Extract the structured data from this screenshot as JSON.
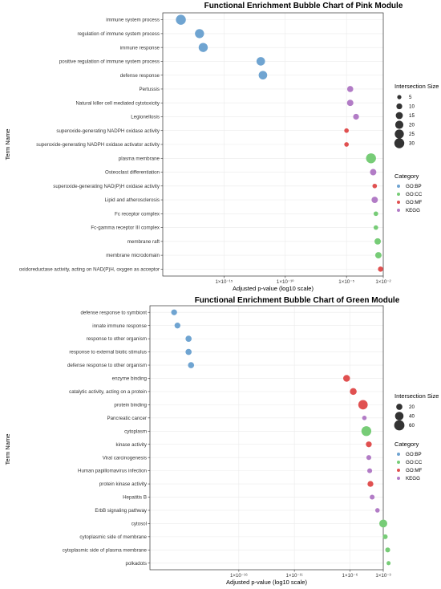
{
  "colors": {
    "GO:BP": "#6fa4d1",
    "GO:CC": "#77cc77",
    "GO:MF": "#e05050",
    "KEGG": "#b27cc6"
  },
  "chart_data": [
    {
      "type": "scatter",
      "title": "Functional Enrichment Bubble Chart of Pink Module",
      "xlabel": "Adjusted p-value (log10 scale)",
      "ylabel": "Term Name",
      "x_scale": "log10",
      "xlim": [
        1e-20,
        0.01
      ],
      "xticks": [
        1e-15,
        1e-10,
        1e-05,
        0.01
      ],
      "xtick_labels": [
        "1×10⁻¹⁵",
        "1×10⁻¹⁰",
        "1×10⁻⁵",
        "1×10⁻²"
      ],
      "size_legend_title": "Intersection Size",
      "size_legend": [
        5,
        10,
        15,
        20,
        25,
        30
      ],
      "category_legend_title": "Category",
      "categories": [
        "GO:BP",
        "GO:CC",
        "GO:MF",
        "KEGG"
      ],
      "grid": true,
      "points": [
        {
          "term": "immune system process",
          "p": 3e-19,
          "size": 30,
          "category": "GO:BP"
        },
        {
          "term": "regulation of immune system process",
          "p": 1e-17,
          "size": 25,
          "category": "GO:BP"
        },
        {
          "term": "immune response",
          "p": 2e-17,
          "size": 25,
          "category": "GO:BP"
        },
        {
          "term": "positive regulation of immune system process",
          "p": 1e-12,
          "size": 22,
          "category": "GO:BP"
        },
        {
          "term": "defense response",
          "p": 1.5e-12,
          "size": 22,
          "category": "GO:BP"
        },
        {
          "term": "Pertussis",
          "p": 2e-05,
          "size": 11,
          "category": "KEGG"
        },
        {
          "term": "Natural killer cell mediated cytotoxicity",
          "p": 2e-05,
          "size": 12,
          "category": "KEGG"
        },
        {
          "term": "Legionellosis",
          "p": 6e-05,
          "size": 10,
          "category": "KEGG"
        },
        {
          "term": "superoxide-generating NADPH oxidase activity",
          "p": 1e-05,
          "size": 6,
          "category": "GO:MF"
        },
        {
          "term": "superoxide-generating NADPH oxidase activator activity",
          "p": 1e-05,
          "size": 6,
          "category": "GO:MF"
        },
        {
          "term": "plasma membrane",
          "p": 0.001,
          "size": 30,
          "category": "GO:CC"
        },
        {
          "term": "Osteoclast differentiation",
          "p": 0.0015,
          "size": 12,
          "category": "KEGG"
        },
        {
          "term": "superoxide-generating NAD(P)H oxidase activity",
          "p": 0.002,
          "size": 6,
          "category": "GO:MF"
        },
        {
          "term": "Lipid and atherosclerosis",
          "p": 0.002,
          "size": 12,
          "category": "KEGG"
        },
        {
          "term": "Fc receptor complex",
          "p": 0.0025,
          "size": 6,
          "category": "GO:CC"
        },
        {
          "term": "Fc-gamma receptor III complex",
          "p": 0.0025,
          "size": 6,
          "category": "GO:CC"
        },
        {
          "term": "membrane raft",
          "p": 0.0035,
          "size": 12,
          "category": "GO:CC"
        },
        {
          "term": "membrane microdomain",
          "p": 0.004,
          "size": 12,
          "category": "GO:CC"
        },
        {
          "term": "oxidoreductase activity, acting on NAD(P)H, oxygen as acceptor",
          "p": 0.006,
          "size": 8,
          "category": "GO:MF"
        }
      ]
    },
    {
      "type": "scatter",
      "title": "Functional Enrichment Bubble Chart of Green Module",
      "xlabel": "Adjusted p-value (log10 scale)",
      "ylabel": "Term Name",
      "x_scale": "log10",
      "xlim": [
        1e-24,
        0.001
      ],
      "xticks": [
        1e-16,
        1e-11,
        1e-06,
        0.001
      ],
      "xtick_labels": [
        "1×10⁻¹⁶",
        "1×10⁻¹¹",
        "1×10⁻⁶",
        "1×10⁻³"
      ],
      "size_legend_title": "Intersection Size",
      "size_legend": [
        20,
        40,
        60
      ],
      "category_legend_title": "Category",
      "categories": [
        "GO:BP",
        "GO:CC",
        "GO:MF",
        "KEGG"
      ],
      "grid": true,
      "points": [
        {
          "term": "defense response to symbiont",
          "p": 1.5e-22,
          "size": 18,
          "category": "GO:BP"
        },
        {
          "term": "innate immune response",
          "p": 3e-22,
          "size": 18,
          "category": "GO:BP"
        },
        {
          "term": "response to other organism",
          "p": 3e-21,
          "size": 20,
          "category": "GO:BP"
        },
        {
          "term": "response to external biotic stimulus",
          "p": 3e-21,
          "size": 20,
          "category": "GO:BP"
        },
        {
          "term": "defense response to other organism",
          "p": 5e-21,
          "size": 20,
          "category": "GO:BP"
        },
        {
          "term": "enzyme binding",
          "p": 5e-07,
          "size": 25,
          "category": "GO:MF"
        },
        {
          "term": "catalytic activity, acting on a protein",
          "p": 2e-06,
          "size": 25,
          "category": "GO:MF"
        },
        {
          "term": "protein binding",
          "p": 1.5e-05,
          "size": 50,
          "category": "GO:MF"
        },
        {
          "term": "Pancreatic cancer",
          "p": 2e-05,
          "size": 10,
          "category": "KEGG"
        },
        {
          "term": "cytoplasm",
          "p": 3e-05,
          "size": 55,
          "category": "GO:CC"
        },
        {
          "term": "kinase activity",
          "p": 5e-05,
          "size": 18,
          "category": "GO:MF"
        },
        {
          "term": "Viral carcinogenesis",
          "p": 5e-05,
          "size": 12,
          "category": "KEGG"
        },
        {
          "term": "Human papillomavirus infection",
          "p": 6e-05,
          "size": 12,
          "category": "KEGG"
        },
        {
          "term": "protein kinase activity",
          "p": 7e-05,
          "size": 18,
          "category": "GO:MF"
        },
        {
          "term": "Hepatitis B",
          "p": 0.0001,
          "size": 12,
          "category": "KEGG"
        },
        {
          "term": "ErbB signaling pathway",
          "p": 0.0003,
          "size": 10,
          "category": "KEGG"
        },
        {
          "term": "cytosol",
          "p": 0.001,
          "size": 35,
          "category": "GO:CC"
        },
        {
          "term": "cytoplasmic side of membrane",
          "p": 0.0015,
          "size": 12,
          "category": "GO:CC"
        },
        {
          "term": "cytoplasmic side of plasma membrane",
          "p": 0.0025,
          "size": 12,
          "category": "GO:CC"
        },
        {
          "term": "polkadots",
          "p": 0.003,
          "size": 8,
          "category": "GO:CC"
        }
      ]
    }
  ]
}
